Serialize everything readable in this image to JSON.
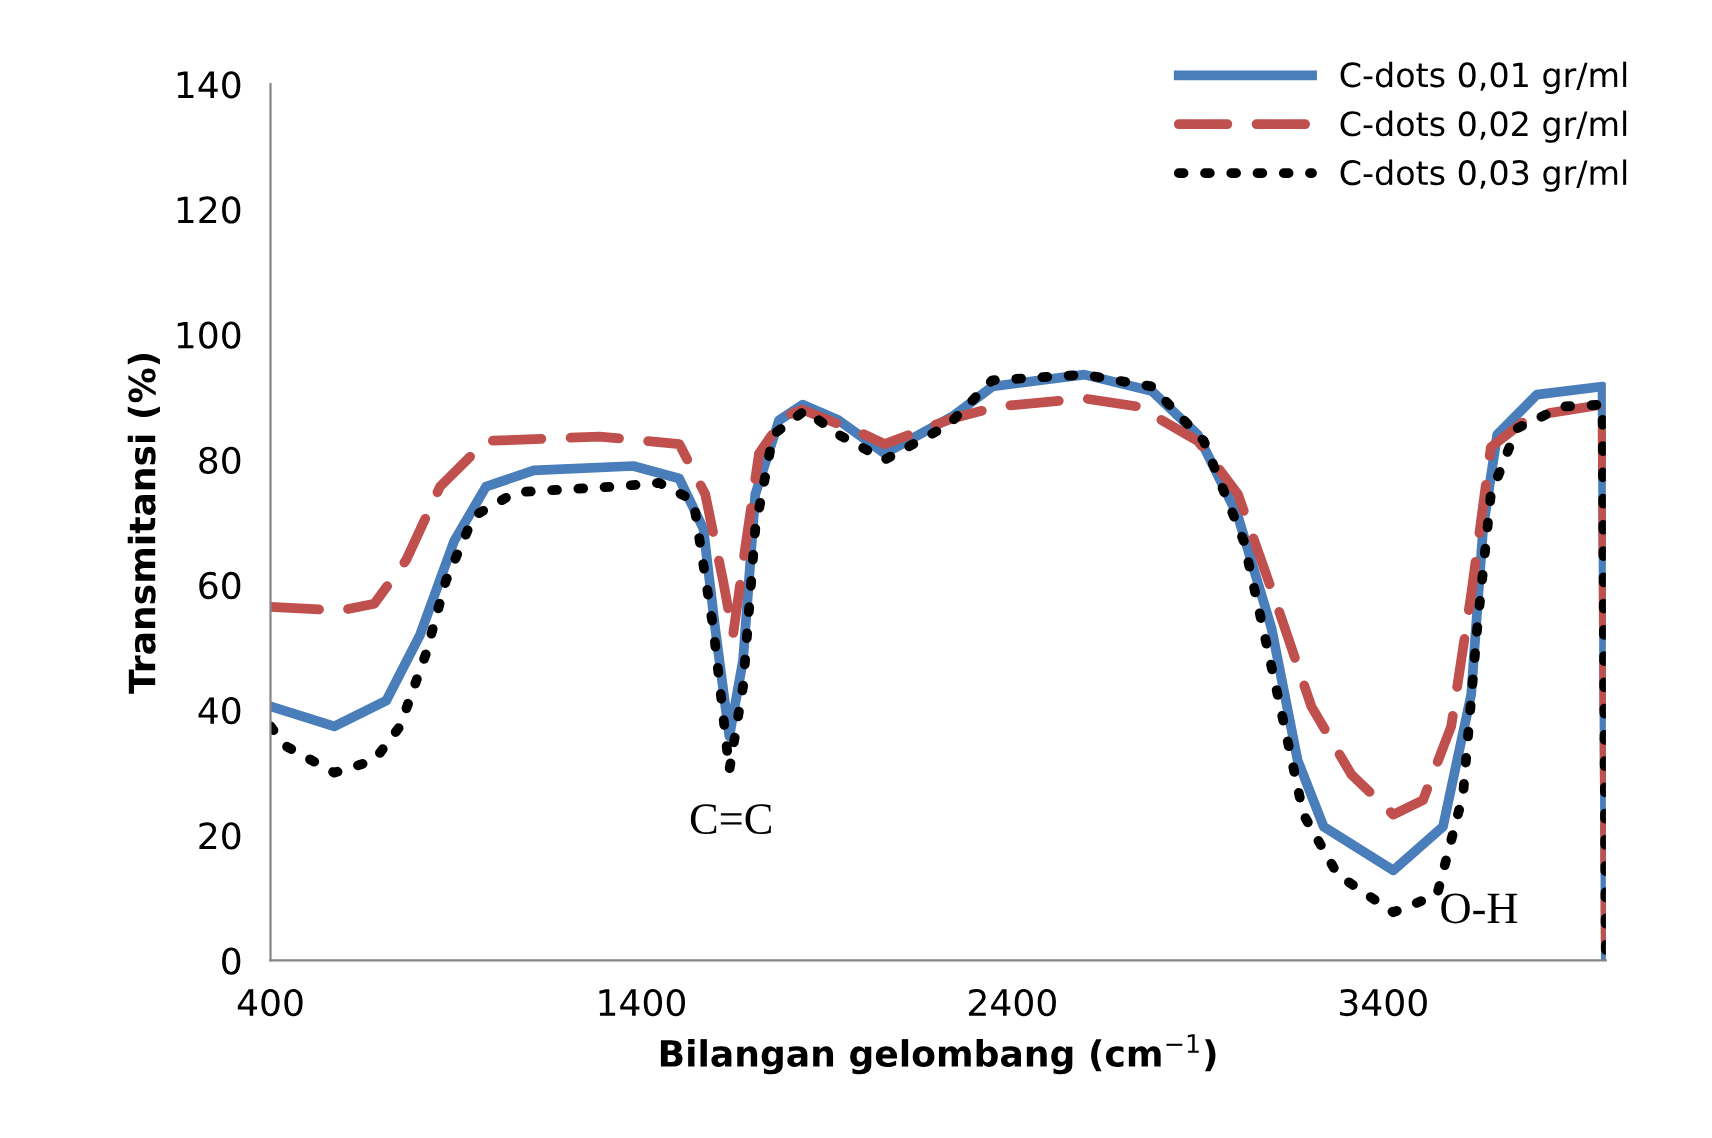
{
  "chart_data": {
    "type": "line",
    "xlabel": "Bilangan gelombang (cm$^{−1}$)",
    "ylabel": "Transmitansi (%)",
    "xlim": [
      400,
      4000
    ],
    "xticks": [
      400,
      1400,
      2400,
      3400
    ],
    "ylim": [
      0,
      140
    ],
    "yticks": [
      0,
      20,
      40,
      60,
      80,
      100,
      120,
      140
    ],
    "grid": false,
    "legend": "top right",
    "series": [
      {
        "name": "C-dots 0,01 gr/ml",
        "color": "#4a7ebb",
        "line_style": "solid",
        "x": [
          400,
          572,
          712,
          803,
          895,
          981,
          1110,
          1378,
          1502,
          1567,
          1599,
          1637,
          1674,
          1707,
          1771,
          1835,
          1932,
          2056,
          2238,
          2346,
          2594,
          2776,
          2900,
          3008,
          3099,
          3169,
          3239,
          3427,
          3561,
          3637,
          3669,
          3707,
          3814,
          3991,
          4000
        ],
        "values": [
          40.6,
          37.4,
          41.5,
          52,
          67,
          75.7,
          78.3,
          79,
          77,
          69,
          53,
          35.8,
          48,
          74.5,
          86.3,
          88.8,
          86.3,
          81,
          86.9,
          91.7,
          93.6,
          91,
          84,
          71,
          53,
          32,
          21.4,
          14.4,
          21.4,
          42.5,
          69,
          84,
          90.4,
          91.7,
          0
        ]
      },
      {
        "name": "C-dots 0,02 gr/ml",
        "color": "#c0504d",
        "line_style": "dashed",
        "x": [
          400,
          588,
          680,
          766,
          857,
          981,
          1287,
          1502,
          1572,
          1620,
          1647,
          1680,
          1717,
          1787,
          1835,
          2002,
          2056,
          2238,
          2362,
          2594,
          2739,
          2900,
          3008,
          3115,
          3206,
          3314,
          3427,
          3507,
          3583,
          3637,
          3690,
          3798,
          3991,
          4000
        ],
        "values": [
          56.5,
          55.9,
          57,
          64,
          75.7,
          83,
          83.7,
          82.5,
          74.5,
          60.7,
          52,
          66,
          81,
          87,
          88,
          84,
          82.5,
          86.6,
          88.5,
          89.8,
          88.5,
          83,
          74.5,
          56.5,
          40.6,
          29.7,
          23.3,
          25.6,
          37.4,
          58.5,
          82,
          87,
          88.8,
          0
        ]
      },
      {
        "name": "C-dots 0,03 gr/ml",
        "color": "#000000",
        "line_style": "dotted",
        "x": [
          400,
          443,
          572,
          680,
          749,
          819,
          873,
          948,
          1061,
          1325,
          1448,
          1540,
          1594,
          1637,
          1674,
          1707,
          1755,
          1841,
          1932,
          2056,
          2228,
          2346,
          2594,
          2776,
          2916,
          3024,
          3115,
          3185,
          3277,
          3427,
          3545,
          3615,
          3653,
          3690,
          3760,
          3884,
          3991,
          4000
        ],
        "values": [
          37.4,
          34.2,
          30,
          32,
          37.4,
          49,
          60.7,
          71,
          74.8,
          75.7,
          76.3,
          73.5,
          53,
          30.4,
          43.8,
          69,
          84,
          87.9,
          84,
          80,
          85.6,
          92.7,
          93.6,
          91.7,
          83,
          67,
          42.5,
          23.3,
          13.7,
          7.7,
          10.5,
          26.5,
          53,
          74.5,
          85,
          88.5,
          88.8,
          0
        ]
      }
    ],
    "annotations": [
      "C=C",
      "O-H"
    ]
  }
}
